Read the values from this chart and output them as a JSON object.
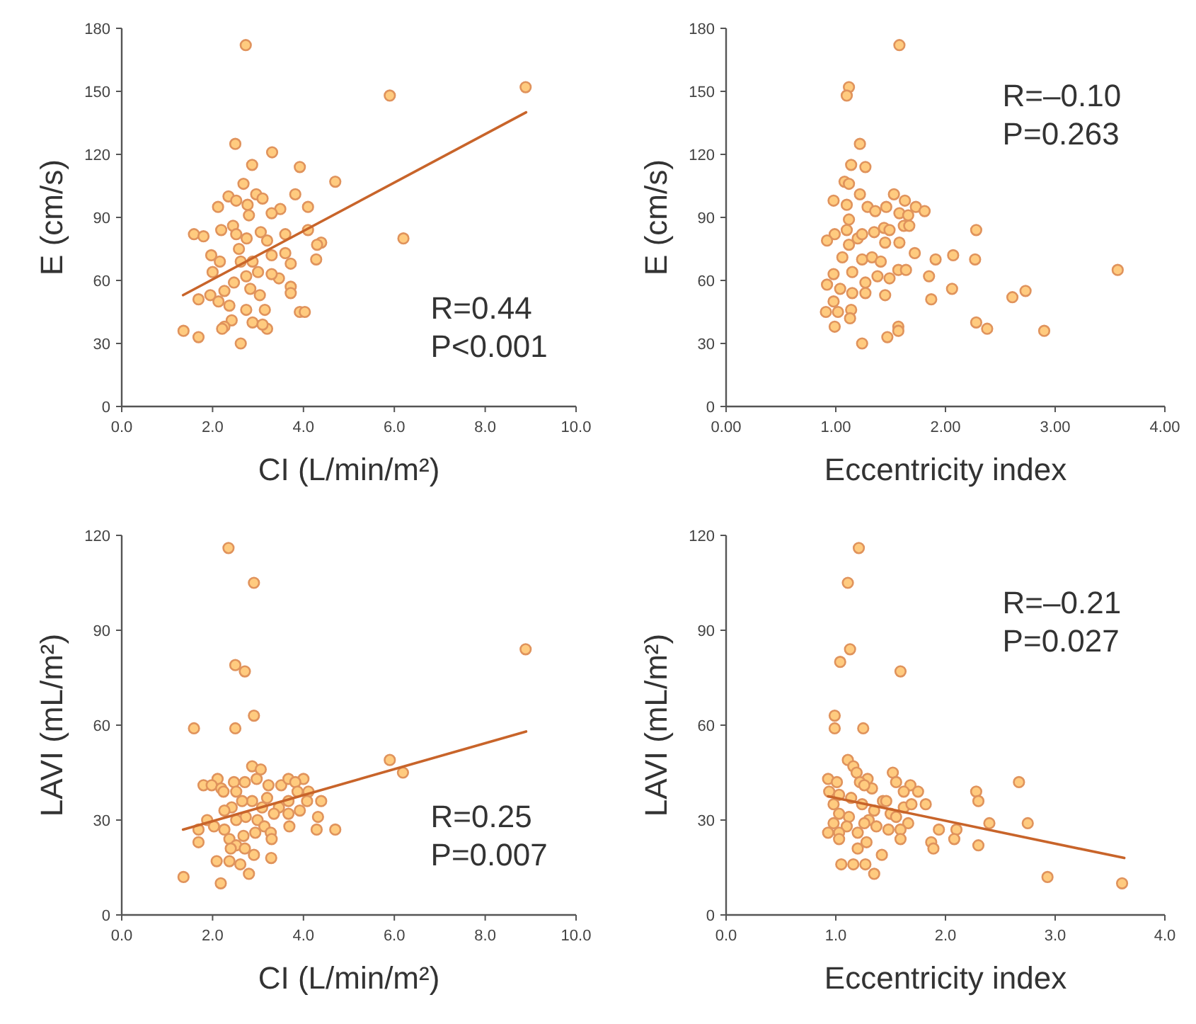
{
  "chart_data": [
    {
      "type": "scatter",
      "xlabel": "CI (L/min/m²)",
      "ylabel": "E (cm/s)",
      "marker": "circle",
      "grid": false,
      "annotations": [
        "R=0.44",
        "P<0.001"
      ],
      "xlim": [
        0,
        10
      ],
      "xticks": [
        {
          "value": 0,
          "label": "0.0"
        },
        {
          "value": 2,
          "label": "2.0"
        },
        {
          "value": 4,
          "label": "4.0"
        },
        {
          "value": 6,
          "label": "6.0"
        },
        {
          "value": 8,
          "label": "8.0"
        },
        {
          "value": 10,
          "label": "10.0"
        }
      ],
      "ylim": [
        0,
        180
      ],
      "yticks": [
        0,
        30,
        60,
        90,
        120,
        150,
        180
      ],
      "series": [
        {
          "color": "#e0935c",
          "x": [
            2.73,
            5.9,
            8.89,
            6.2,
            2.5,
            3.31,
            2.87,
            3.92,
            4.7,
            2.68,
            2.35,
            2.96,
            3.82,
            2.12,
            2.52,
            4.1,
            3.1,
            2.77,
            3.49,
            3.3,
            2.8,
            1.59,
            1.8,
            2.19,
            2.45,
            2.52,
            2.75,
            3.06,
            3.6,
            4.1,
            4.39,
            4.3,
            4.28,
            1.97,
            2.16,
            2.0,
            2.62,
            2.88,
            3.3,
            3.6,
            3.72,
            3.72,
            3.72,
            3.46,
            3.3,
            3.0,
            2.74,
            2.47,
            2.26,
            1.69,
            1.95,
            2.13,
            2.83,
            3.04,
            2.74,
            3.15,
            3.92,
            4.03,
            2.42,
            2.26,
            2.88,
            3.2,
            1.36,
            1.69,
            2.62,
            2.21,
            3.1,
            2.37,
            2.58,
            3.2
          ],
          "values": [
            172,
            148,
            152,
            80,
            125,
            121,
            115,
            114,
            107,
            106,
            100,
            101,
            101,
            95,
            98,
            95,
            99,
            96,
            94,
            92,
            91,
            82,
            81,
            84,
            86,
            82,
            80,
            83,
            82,
            84,
            78,
            77,
            70,
            72,
            69,
            64,
            69,
            69,
            72,
            73,
            68,
            57,
            54,
            61,
            63,
            64,
            62,
            59,
            55,
            51,
            53,
            50,
            56,
            53,
            46,
            46,
            45,
            45,
            41,
            38,
            40,
            37,
            36,
            33,
            30,
            37,
            39,
            48,
            75,
            79
          ]
        },
        {
          "type": "line",
          "marker": "none",
          "color": "#c8642a",
          "x": [
            1.35,
            8.9
          ],
          "values": [
            53,
            140
          ]
        }
      ]
    },
    {
      "type": "scatter",
      "xlabel": "Eccentricity index",
      "ylabel": "E (cm/s)",
      "marker": "circle",
      "grid": false,
      "annotations": [
        "R=–0.10",
        "P=0.263"
      ],
      "xlim": [
        0,
        4
      ],
      "xticks": [
        {
          "value": 0,
          "label": "0.00"
        },
        {
          "value": 1,
          "label": "1.00"
        },
        {
          "value": 2,
          "label": "2.00"
        },
        {
          "value": 3,
          "label": "3.00"
        },
        {
          "value": 4,
          "label": "4.00"
        }
      ],
      "ylim": [
        0,
        180
      ],
      "yticks": [
        0,
        30,
        60,
        90,
        120,
        150,
        180
      ],
      "series": [
        {
          "color": "#e0935c",
          "x": [
            1.58,
            1.12,
            1.1,
            1.22,
            1.14,
            1.27,
            1.08,
            1.12,
            0.98,
            1.1,
            1.22,
            1.29,
            1.36,
            1.53,
            1.63,
            1.46,
            1.58,
            1.73,
            1.81,
            1.66,
            1.12,
            1.1,
            0.99,
            0.92,
            1.2,
            1.24,
            1.35,
            1.44,
            1.49,
            1.45,
            1.58,
            1.62,
            1.67,
            2.28,
            1.12,
            1.72,
            2.07,
            2.27,
            1.91,
            1.06,
            1.24,
            1.33,
            1.41,
            1.85,
            3.57,
            1.57,
            1.64,
            0.98,
            1.15,
            1.27,
            1.38,
            1.49,
            0.92,
            1.04,
            1.15,
            1.27,
            1.45,
            2.06,
            1.87,
            2.61,
            2.73,
            0.98,
            1.14,
            0.91,
            1.02,
            1.13,
            0.99,
            1.57,
            1.57,
            2.28,
            2.38,
            1.47,
            2.9,
            1.24
          ],
          "values": [
            172,
            152,
            148,
            125,
            115,
            114,
            107,
            106,
            98,
            96,
            101,
            95,
            93,
            101,
            98,
            95,
            92,
            95,
            93,
            91,
            89,
            84,
            82,
            79,
            80,
            82,
            83,
            85,
            84,
            78,
            78,
            86,
            86,
            84,
            77,
            73,
            72,
            70,
            70,
            71,
            70,
            71,
            69,
            62,
            65,
            65,
            65,
            63,
            64,
            59,
            62,
            61,
            58,
            56,
            54,
            54,
            53,
            56,
            51,
            52,
            55,
            50,
            46,
            45,
            45,
            42,
            38,
            38,
            36,
            40,
            37,
            33,
            36,
            30
          ]
        }
      ]
    },
    {
      "type": "scatter",
      "xlabel": "CI (L/min/m²)",
      "ylabel": "LAVI (mL/m²)",
      "marker": "circle",
      "grid": false,
      "annotations": [
        "R=0.25",
        "P=0.007"
      ],
      "xlim": [
        0,
        10
      ],
      "xticks": [
        {
          "value": 0,
          "label": "0.0"
        },
        {
          "value": 2,
          "label": "2.0"
        },
        {
          "value": 4,
          "label": "4.0"
        },
        {
          "value": 6,
          "label": "6.0"
        },
        {
          "value": 8,
          "label": "8.0"
        },
        {
          "value": 10,
          "label": "10.0"
        }
      ],
      "ylim": [
        0,
        120
      ],
      "yticks": [
        0,
        30,
        60,
        90,
        120
      ],
      "series": [
        {
          "color": "#e0935c",
          "x": [
            2.35,
            2.91,
            8.89,
            2.5,
            2.71,
            2.91,
            1.59,
            2.5,
            5.9,
            6.19,
            2.87,
            3.06,
            2.11,
            1.8,
            1.98,
            2.19,
            2.47,
            2.71,
            2.97,
            3.23,
            2.24,
            2.52,
            3.51,
            3.67,
            4.0,
            3.82,
            3.87,
            4.11,
            4.39,
            4.08,
            3.67,
            3.2,
            2.87,
            2.65,
            2.42,
            2.26,
            3.09,
            3.46,
            3.92,
            3.67,
            3.35,
            4.32,
            2.73,
            1.88,
            2.03,
            2.52,
            2.99,
            3.69,
            3.14,
            4.29,
            4.7,
            1.69,
            2.26,
            2.68,
            2.94,
            3.28,
            3.3,
            2.37,
            2.52,
            1.69,
            2.71,
            2.4,
            2.91,
            3.29,
            2.09,
            2.37,
            2.61,
            2.8,
            1.36,
            2.18
          ],
          "values": [
            116,
            105,
            84,
            79,
            77,
            63,
            59,
            59,
            49,
            45,
            47,
            46,
            43,
            41,
            41,
            40,
            42,
            42,
            43,
            41,
            39,
            39,
            41,
            43,
            43,
            42,
            39,
            39,
            36,
            36,
            36,
            37,
            36,
            36,
            34,
            33,
            34,
            34,
            33,
            32,
            32,
            31,
            31,
            30,
            28,
            30,
            30,
            28,
            28,
            27,
            27,
            27,
            27,
            25,
            26,
            26,
            24,
            24,
            22,
            23,
            21,
            21,
            19,
            18,
            17,
            17,
            16,
            13,
            12,
            10
          ]
        },
        {
          "type": "line",
          "marker": "none",
          "color": "#c8642a",
          "x": [
            1.35,
            8.9
          ],
          "values": [
            27,
            58
          ]
        }
      ]
    },
    {
      "type": "scatter",
      "xlabel": "Eccentricity index",
      "ylabel": "LAVI (mL/m²)",
      "marker": "circle",
      "grid": false,
      "annotations": [
        "R=–0.21",
        "P=0.027"
      ],
      "xlim": [
        0,
        4
      ],
      "xticks": [
        {
          "value": 0,
          "label": "0.0"
        },
        {
          "value": 1,
          "label": "1.0"
        },
        {
          "value": 2,
          "label": "2.0"
        },
        {
          "value": 3,
          "label": "3.0"
        },
        {
          "value": 4,
          "label": "4.0"
        }
      ],
      "ylim": [
        0,
        120
      ],
      "yticks": [
        0,
        30,
        60,
        90,
        120
      ],
      "series": [
        {
          "color": "#e0935c",
          "x": [
            1.21,
            1.11,
            1.13,
            1.04,
            1.59,
            0.99,
            0.99,
            1.25,
            1.11,
            1.16,
            1.19,
            1.52,
            1.29,
            0.93,
            1.01,
            1.55,
            2.67,
            1.22,
            1.33,
            1.26,
            1.68,
            1.62,
            1.75,
            2.28,
            0.94,
            1.03,
            1.14,
            1.43,
            1.46,
            2.3,
            1.62,
            1.82,
            1.69,
            0.98,
            1.24,
            1.35,
            1.5,
            1.55,
            1.12,
            1.03,
            1.3,
            1.66,
            2.4,
            2.75,
            0.98,
            1.1,
            1.26,
            1.37,
            1.48,
            1.59,
            0.93,
            1.03,
            1.2,
            1.94,
            2.1,
            2.08,
            1.59,
            1.03,
            1.28,
            1.87,
            2.3,
            1.89,
            1.2,
            1.42,
            1.05,
            1.16,
            1.27,
            1.35,
            2.93,
            3.61
          ],
          "values": [
            116,
            105,
            84,
            80,
            77,
            63,
            59,
            59,
            49,
            47,
            45,
            45,
            43,
            43,
            42,
            42,
            42,
            42,
            40,
            41,
            41,
            39,
            39,
            39,
            39,
            38,
            37,
            36,
            36,
            36,
            34,
            35,
            35,
            35,
            35,
            33,
            32,
            31,
            31,
            32,
            30,
            29,
            29,
            29,
            29,
            28,
            29,
            28,
            27,
            27,
            26,
            26,
            26,
            27,
            27,
            24,
            24,
            24,
            23,
            23,
            22,
            21,
            21,
            19,
            16,
            16,
            16,
            13,
            12,
            10
          ]
        },
        {
          "type": "line",
          "marker": "none",
          "color": "#c8642a",
          "x": [
            0.93,
            3.63
          ],
          "values": [
            37.5,
            18
          ]
        }
      ]
    }
  ]
}
